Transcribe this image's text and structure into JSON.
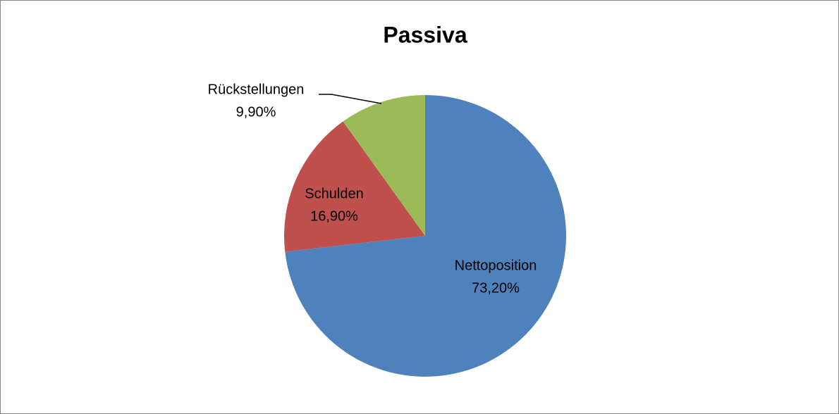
{
  "chart_data": {
    "type": "pie",
    "title": "Passiva",
    "categories": [
      "Nettoposition",
      "Schulden",
      "Rückstellungen"
    ],
    "values": [
      73.2,
      16.9,
      9.9
    ],
    "value_labels": [
      "73,20%",
      "16,90%",
      "9,90%"
    ],
    "colors": [
      "#4f81bd",
      "#c0504d",
      "#9bbb59"
    ]
  }
}
